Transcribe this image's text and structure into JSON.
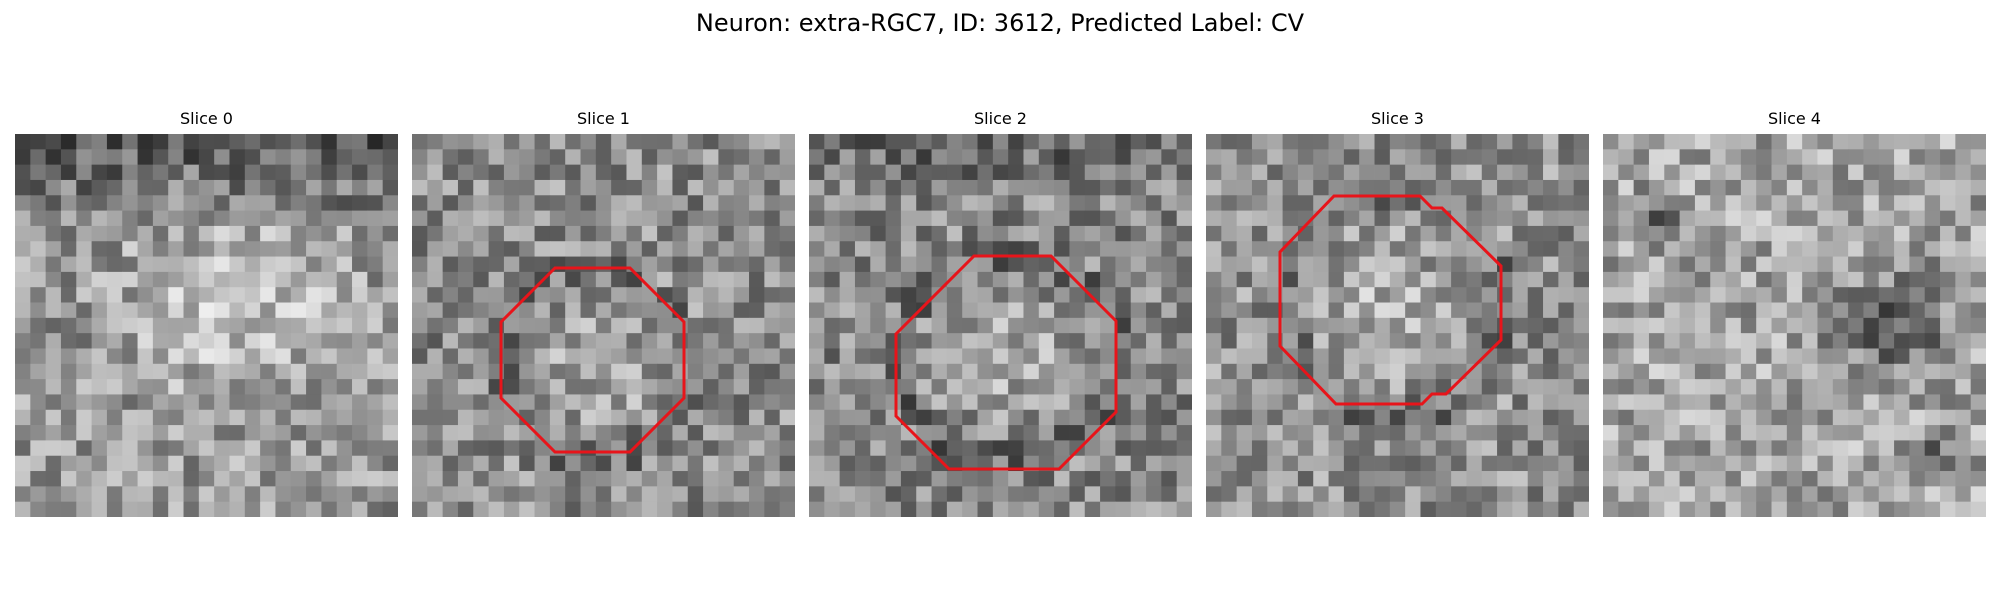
{
  "figure": {
    "title": "Neuron: extra-RGC7, ID: 3612, Predicted Label: CV"
  },
  "colors": {
    "contour": "#e8141a",
    "background": "#ffffff",
    "text": "#000000"
  },
  "panels": [
    {
      "title": "Slice 0",
      "has_contour": false,
      "seed": 11
    },
    {
      "title": "Slice 1",
      "has_contour": true,
      "seed": 23
    },
    {
      "title": "Slice 2",
      "has_contour": true,
      "seed": 37
    },
    {
      "title": "Slice 3",
      "has_contour": true,
      "seed": 53
    },
    {
      "title": "Slice 4",
      "has_contour": false,
      "seed": 71
    }
  ]
}
